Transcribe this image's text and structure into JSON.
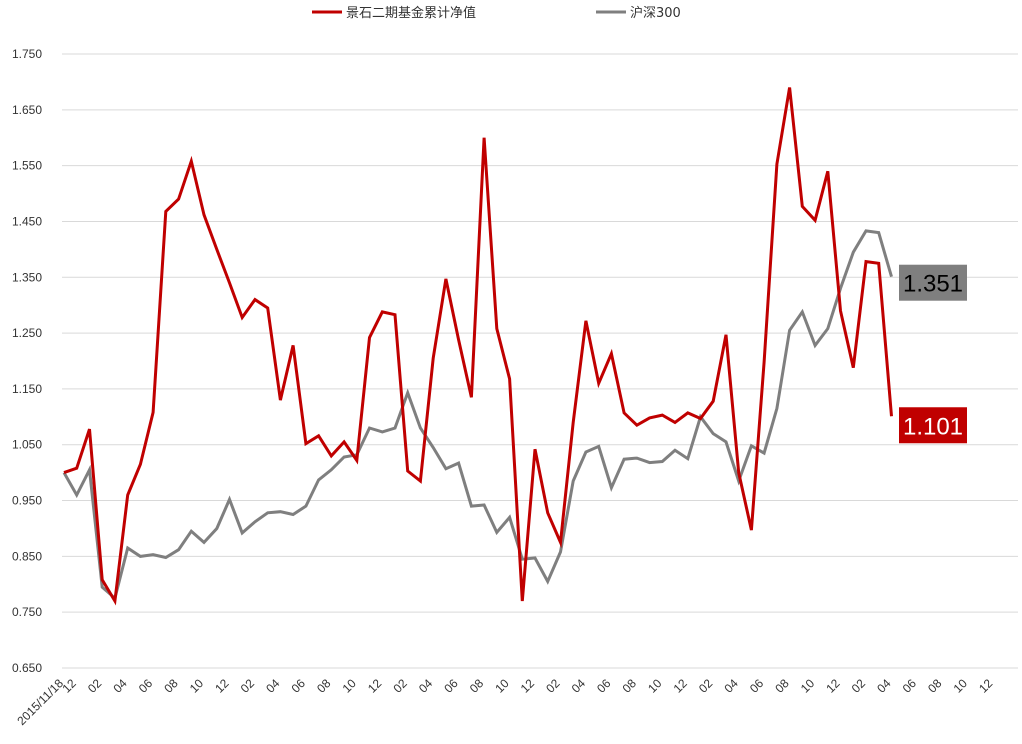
{
  "chart_data": {
    "type": "line",
    "title": "",
    "xlabel": "",
    "ylabel": "",
    "ylim": [
      0.65,
      1.75
    ],
    "yticks": [
      0.65,
      0.75,
      0.85,
      0.95,
      1.05,
      1.15,
      1.25,
      1.35,
      1.45,
      1.55,
      1.65,
      1.75
    ],
    "ytick_labels": [
      "0.650",
      "0.750",
      "0.850",
      "0.950",
      "1.050",
      "1.150",
      "1.250",
      "1.350",
      "1.450",
      "1.550",
      "1.650",
      "1.750"
    ],
    "grid": "horizontal",
    "legend_position": "top-center",
    "x_tick_labels": [
      "2015/11/18",
      "12",
      "02",
      "04",
      "06",
      "08",
      "10",
      "12",
      "02",
      "04",
      "06",
      "08",
      "10",
      "12",
      "02",
      "04",
      "06",
      "08",
      "10",
      "12",
      "02",
      "04",
      "06",
      "08",
      "10",
      "12",
      "02",
      "04",
      "06",
      "08",
      "10",
      "12",
      "02",
      "04",
      "06",
      "08",
      "10",
      "12"
    ],
    "series": [
      {
        "name": "景石二期基金累计净值",
        "color": "#c00000",
        "end_label": "1.101",
        "values": [
          1.0,
          1.008,
          1.078,
          0.808,
          0.77,
          0.96,
          1.015,
          1.108,
          1.468,
          1.49,
          1.558,
          1.462,
          1.4,
          1.34,
          1.278,
          1.31,
          1.295,
          1.13,
          1.228,
          1.052,
          1.066,
          1.03,
          1.055,
          1.022,
          1.242,
          1.288,
          1.283,
          1.003,
          0.985,
          1.205,
          1.347,
          1.238,
          1.135,
          1.6,
          1.258,
          1.168,
          0.77,
          1.042,
          0.928,
          0.875,
          1.09,
          1.272,
          1.16,
          1.213,
          1.107,
          1.085,
          1.098,
          1.103,
          1.09,
          1.107,
          1.097,
          1.128,
          1.247,
          1.0,
          0.897,
          1.198,
          1.553,
          1.69,
          1.477,
          1.452,
          1.54,
          1.29,
          1.188,
          1.378,
          1.375,
          1.101
        ]
      },
      {
        "name": "沪深300",
        "color": "#7f7f7f",
        "end_label": "1.351",
        "values": [
          1.0,
          0.96,
          1.005,
          0.795,
          0.775,
          0.865,
          0.85,
          0.853,
          0.848,
          0.862,
          0.895,
          0.875,
          0.9,
          0.952,
          0.892,
          0.912,
          0.928,
          0.93,
          0.925,
          0.94,
          0.987,
          1.005,
          1.028,
          1.032,
          1.08,
          1.073,
          1.08,
          1.143,
          1.08,
          1.045,
          1.007,
          1.017,
          0.94,
          0.942,
          0.893,
          0.92,
          0.845,
          0.847,
          0.805,
          0.858,
          0.985,
          1.037,
          1.047,
          0.973,
          1.024,
          1.026,
          1.018,
          1.02,
          1.04,
          1.025,
          1.1,
          1.07,
          1.055,
          0.985,
          1.048,
          1.035,
          1.115,
          1.255,
          1.288,
          1.228,
          1.258,
          1.33,
          1.395,
          1.433,
          1.43,
          1.351
        ]
      }
    ]
  }
}
